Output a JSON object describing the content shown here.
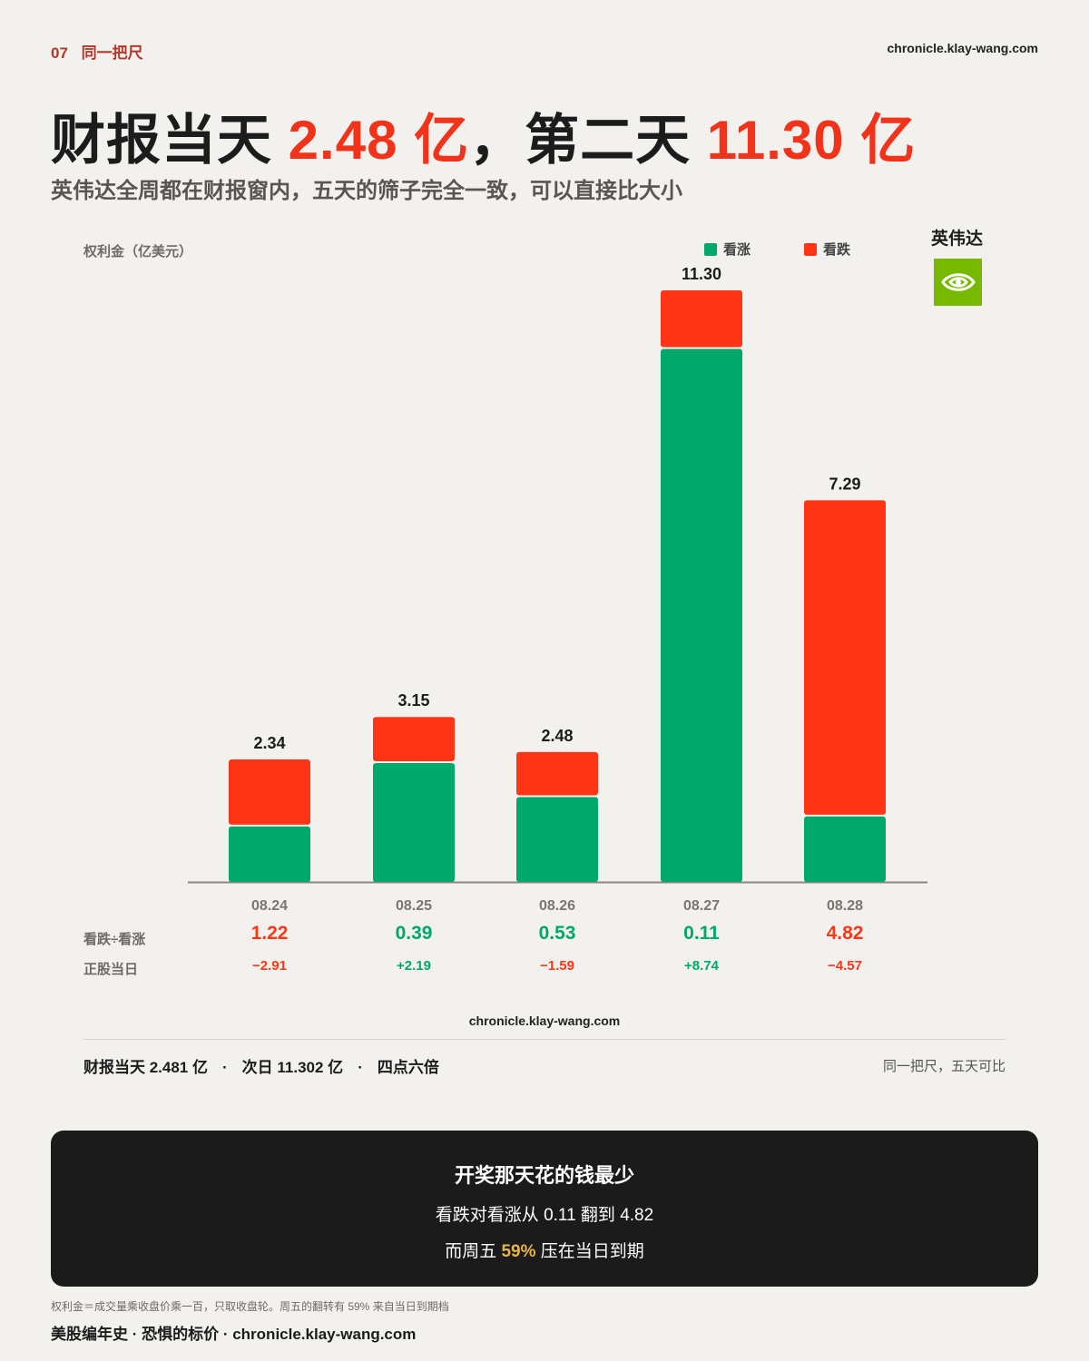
{
  "header": {
    "number": "07",
    "kicker": "同一把尺",
    "site": "chronicle.klay-wang.com"
  },
  "headline": {
    "part1": "财报当天 ",
    "value1": "2.48 亿",
    "part2": "，第二天 ",
    "value2": "11.30 亿"
  },
  "subtitle": "英伟达全周都在财报窗内，五天的筛子完全一致，可以直接比大小",
  "company": {
    "name": "英伟达",
    "logo_icon": "nvidia-logo-icon",
    "logo_color": "#76b900"
  },
  "colors": {
    "call": "#00a86b",
    "put": "#ff3515",
    "axis": "#8a8680",
    "positive": "#00a86b",
    "negative": "#ff3515"
  },
  "chart_data": {
    "type": "bar",
    "stacked": true,
    "ylabel": "权利金（亿美元）",
    "categories": [
      "08.24",
      "08.25",
      "08.26",
      "08.27",
      "08.28"
    ],
    "series": [
      {
        "name": "看涨",
        "values": [
          1.06,
          2.27,
          1.62,
          10.18,
          1.25
        ]
      },
      {
        "name": "看跌",
        "values": [
          1.28,
          0.88,
          0.86,
          1.12,
          6.04
        ]
      }
    ],
    "totals": [
      "2.34",
      "3.15",
      "2.48",
      "11.30",
      "7.29"
    ],
    "ylim": [
      0,
      11.3
    ],
    "legend_position": "top-right",
    "grid": false
  },
  "rows": [
    {
      "label": "看跌÷看涨",
      "values": [
        "1.22",
        "0.39",
        "0.53",
        "0.11",
        "4.82"
      ],
      "signs": [
        "neg",
        "pos",
        "pos",
        "pos",
        "neg"
      ]
    },
    {
      "label": "正股当日",
      "values": [
        "−2.91",
        "+2.19",
        "−1.59",
        "+8.74",
        "−4.57"
      ],
      "signs": [
        "neg",
        "pos",
        "neg",
        "pos",
        "neg"
      ]
    }
  ],
  "summary": {
    "left": [
      "财报当天 2.481 亿",
      "次日 11.302 亿",
      "四点六倍"
    ],
    "separator": "·",
    "right": "同一把尺，五天可比"
  },
  "banner": {
    "title": "开奖那天花的钱最少",
    "line2": "看跌对看涨从 0.11 翻到 4.82",
    "line3_a": "而周五 ",
    "line3_highlight": "59%",
    "line3_b": " 压在当日到期"
  },
  "footnote": "权利金＝成交量乘收盘价乘一百，只取收盘轮。周五的翻转有 59% 来自当日到期档",
  "brand": "美股编年史 · 恐惧的标价 · chronicle.klay-wang.com"
}
